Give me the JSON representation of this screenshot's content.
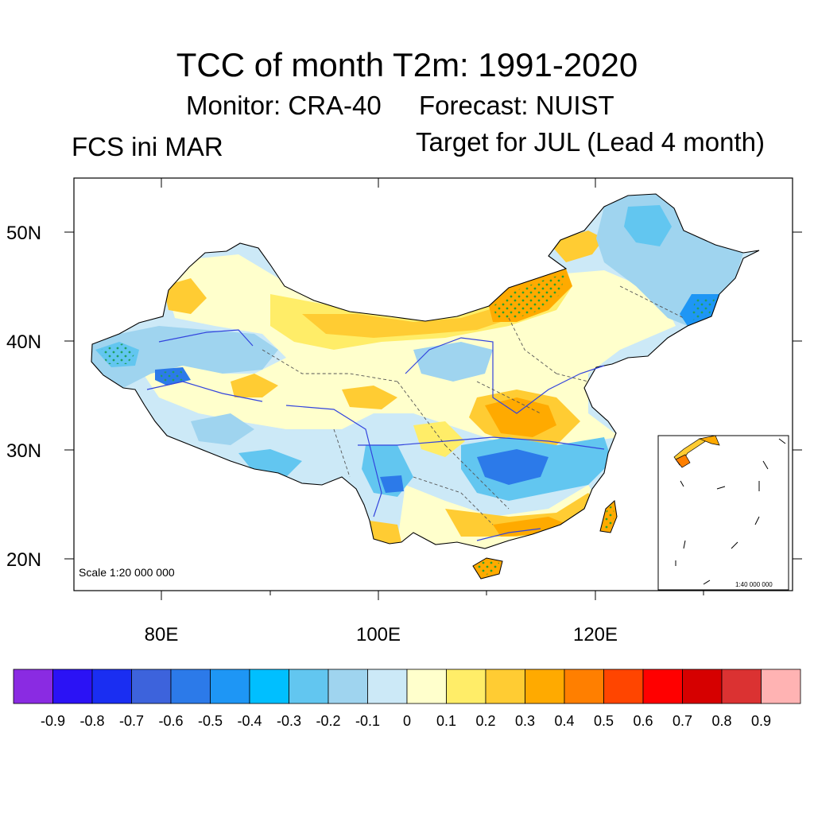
{
  "title": "TCC of month T2m: 1991-2020",
  "monitor": "Monitor: CRA-40",
  "forecast": "Forecast: NUIST",
  "left_label": "FCS ini MAR",
  "right_label": "Target for JUL (Lead 4 month)",
  "map": {
    "scale_label": "Scale 1:20 000 000",
    "inset_scale_label": "1:40 000 000",
    "lon_ticks": [
      "80E",
      "100E",
      "120E"
    ],
    "lat_ticks": [
      "50N",
      "40N",
      "30N",
      "20N"
    ]
  },
  "colorbar": {
    "colors": [
      "#8a2be2",
      "#2b12f5",
      "#1a2ef2",
      "#3d63dc",
      "#2c7ae9",
      "#1e96f5",
      "#00bfff",
      "#62c6f0",
      "#9fd4ef",
      "#cce9f7",
      "#ffffcc",
      "#ffed68",
      "#ffcc33",
      "#ffaa00",
      "#ff7f00",
      "#ff4500",
      "#ff0000",
      "#d60000",
      "#db3232",
      "#ffb3b3"
    ],
    "labels": [
      "-0.9",
      "-0.8",
      "-0.7",
      "-0.6",
      "-0.5",
      "-0.4",
      "-0.3",
      "-0.2",
      "-0.1",
      "0",
      "0.1",
      "0.2",
      "0.3",
      "0.4",
      "0.5",
      "0.6",
      "0.7",
      "0.8",
      "0.9"
    ]
  }
}
